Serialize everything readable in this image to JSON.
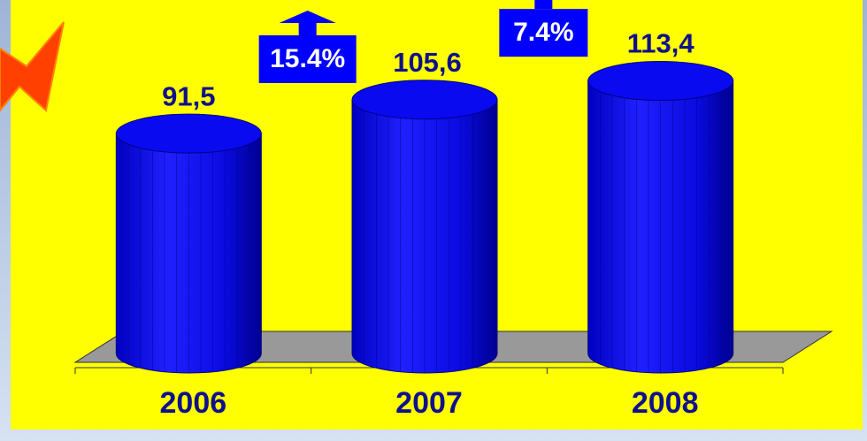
{
  "chart_data": {
    "type": "cylinder",
    "categories": [
      "2006",
      "2007",
      "2008"
    ],
    "values": [
      91.5,
      105.6,
      113.4
    ],
    "value_labels": [
      "91,5",
      "105,6",
      "113,4"
    ],
    "color": "#0a0af0",
    "annotations": [
      "15.4%",
      "7.4%"
    ]
  }
}
